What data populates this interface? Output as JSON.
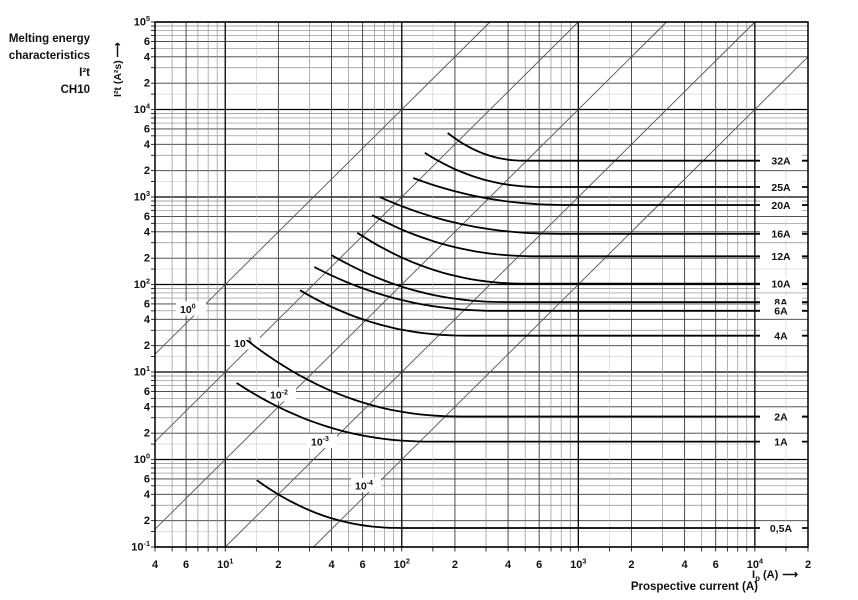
{
  "title": {
    "line1": "Melting energy",
    "line2": "characteristics I²t",
    "line3": "CH10"
  },
  "y_axis": {
    "label": "I²t (A²s)",
    "arrow": "⟶"
  },
  "x_axis": {
    "label": "Prospective current (A)",
    "sym_base": "I",
    "sym_sub": "p",
    "sym_unit": "(A)",
    "arrow": "⟶"
  },
  "colors": {
    "background": "#ffffff",
    "ink": "#111111",
    "grid_major": "#000000",
    "grid_mid": "#3a3a3a",
    "grid_minor": "#8a8a8a",
    "grid_faint": "#c0c0c0",
    "diagonal": "#555555",
    "curve": "#000000"
  },
  "chart_data": {
    "type": "line",
    "x_scale": "log",
    "y_scale": "log",
    "x_range": [
      4,
      20000
    ],
    "y_range": [
      0.1,
      100000
    ],
    "grid": "log-minor",
    "grid_multiples": [
      1,
      1.5,
      2,
      3,
      4,
      5,
      6,
      7,
      8,
      9
    ],
    "x_ticks": [
      {
        "v": 4,
        "l": "4"
      },
      {
        "v": 6,
        "l": "6"
      },
      {
        "v": 10,
        "l": "10^1"
      },
      {
        "v": 20,
        "l": "2"
      },
      {
        "v": 40,
        "l": "4"
      },
      {
        "v": 60,
        "l": "6"
      },
      {
        "v": 100,
        "l": "10^2"
      },
      {
        "v": 200,
        "l": "2"
      },
      {
        "v": 400,
        "l": "4"
      },
      {
        "v": 600,
        "l": "6"
      },
      {
        "v": 1000,
        "l": "10^3"
      },
      {
        "v": 2000,
        "l": "2"
      },
      {
        "v": 4000,
        "l": "4"
      },
      {
        "v": 6000,
        "l": "6"
      },
      {
        "v": 10000,
        "l": "10^4"
      },
      {
        "v": 20000,
        "l": "2"
      }
    ],
    "y_ticks": [
      {
        "v": 100000,
        "l": "10^5"
      },
      {
        "v": 60000,
        "l": "6"
      },
      {
        "v": 40000,
        "l": "4"
      },
      {
        "v": 20000,
        "l": "2"
      },
      {
        "v": 10000,
        "l": "10^4"
      },
      {
        "v": 6000,
        "l": "6"
      },
      {
        "v": 4000,
        "l": "4"
      },
      {
        "v": 2000,
        "l": "2"
      },
      {
        "v": 1000,
        "l": "10^3"
      },
      {
        "v": 600,
        "l": "6"
      },
      {
        "v": 400,
        "l": "4"
      },
      {
        "v": 200,
        "l": "2"
      },
      {
        "v": 100,
        "l": "10^2"
      },
      {
        "v": 60,
        "l": "6"
      },
      {
        "v": 40,
        "l": "4"
      },
      {
        "v": 20,
        "l": "2"
      },
      {
        "v": 10,
        "l": "10^1"
      },
      {
        "v": 6,
        "l": "6"
      },
      {
        "v": 4,
        "l": "4"
      },
      {
        "v": 2,
        "l": "2"
      },
      {
        "v": 1,
        "l": "10^0"
      },
      {
        "v": 0.6,
        "l": "6"
      },
      {
        "v": 0.4,
        "l": "4"
      },
      {
        "v": 0.2,
        "l": "2"
      },
      {
        "v": 0.1,
        "l": "10^-1"
      }
    ],
    "time_lines_unit": "s",
    "time_lines": [
      {
        "t": 1,
        "label": "10^0",
        "label_center_x": 191
      },
      {
        "t": 0.1,
        "label": "10^-1",
        "label_center_x": 245
      },
      {
        "t": 0.01,
        "label": "10^-2",
        "label_center_x": 281
      },
      {
        "t": 0.001,
        "label": "10^-3",
        "label_center_x": 322
      },
      {
        "t": 0.0001,
        "label": "10^-4",
        "label_center_x": 366
      }
    ],
    "curves": [
      {
        "label": "32A",
        "melt_i2t": 2600,
        "tip_i": 182,
        "tip_i2t": 5400,
        "flat_i": 500
      },
      {
        "label": "25A",
        "melt_i2t": 1300,
        "tip_i": 135,
        "tip_i2t": 3200,
        "flat_i": 630
      },
      {
        "label": "20A",
        "melt_i2t": 810,
        "tip_i": 116,
        "tip_i2t": 1650,
        "flat_i": 900
      },
      {
        "label": "16A",
        "melt_i2t": 380,
        "tip_i": 75,
        "tip_i2t": 1000,
        "flat_i": 780
      },
      {
        "label": "12A",
        "melt_i2t": 210,
        "tip_i": 68,
        "tip_i2t": 620,
        "flat_i": 600
      },
      {
        "label": "10A",
        "melt_i2t": 102,
        "tip_i": 56,
        "tip_i2t": 390,
        "flat_i": 520
      },
      {
        "label": "8A",
        "melt_i2t": 63,
        "tip_i": 40,
        "tip_i2t": 217,
        "flat_i": 400
      },
      {
        "label": "6A",
        "melt_i2t": 50,
        "tip_i": 32,
        "tip_i2t": 158,
        "flat_i": 360
      },
      {
        "label": "4A",
        "melt_i2t": 26,
        "tip_i": 26.5,
        "tip_i2t": 86,
        "flat_i": 240
      },
      {
        "label": "2A",
        "melt_i2t": 3.1,
        "tip_i": 13.3,
        "tip_i2t": 23,
        "flat_i": 220
      },
      {
        "label": "1A",
        "melt_i2t": 1.6,
        "tip_i": 11.6,
        "tip_i2t": 7.5,
        "flat_i": 150
      },
      {
        "label": "0,5A",
        "melt_i2t": 0.165,
        "tip_i": 15.1,
        "tip_i2t": 0.58,
        "flat_i": 100
      }
    ]
  }
}
